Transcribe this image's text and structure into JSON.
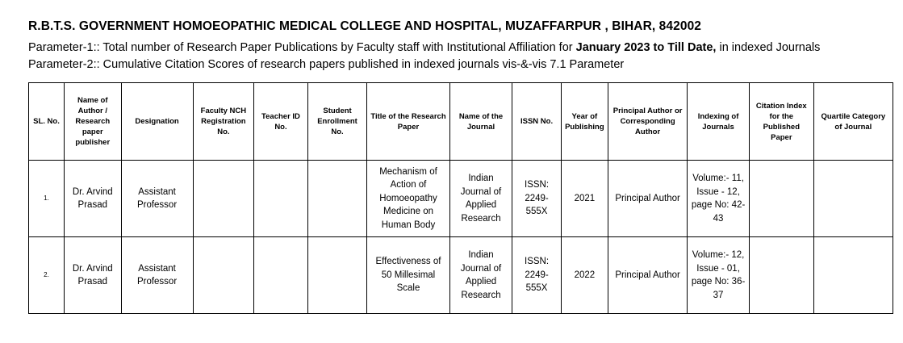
{
  "title": "R.B.T.S. GOVERNMENT HOMOEOPATHIC MEDICAL COLLEGE AND HOSPITAL, MUZAFFARPUR , BIHAR, 842002",
  "parameter1": {
    "prefix": "Parameter-1:: Total number of Research Paper Publications by Faculty staff with Institutional Affiliation for ",
    "bold": "January 2023 to Till Date,",
    "suffix": " in indexed Journals"
  },
  "parameter2": "Parameter-2:: Cumulative Citation Scores of research papers published in indexed journals vis-&-vis 7.1 Parameter",
  "table": {
    "headers": [
      "SL. No.",
      "Name of Author / Research paper publisher",
      "Designation",
      "Faculty NCH Registration No.",
      "Teacher ID No.",
      "Student Enrollment No.",
      "Title of the Research Paper",
      "Name of the Journal",
      "ISSN No.",
      "Year of Publishing",
      "Principal Author or Corresponding Author",
      "Indexing of Journals",
      "Citation Index for the Published Paper",
      "Quartile Category of Journal"
    ],
    "rows": [
      [
        "1.",
        "Dr. Arvind Prasad",
        "Assistant Professor",
        "",
        "",
        "",
        "Mechanism of Action of Homoeopathy Medicine on Human Body",
        "Indian Journal of Applied Research",
        "ISSN: 2249-555X",
        "2021",
        "Principal Author",
        "Volume:- 11, Issue - 12, page No: 42-43",
        "",
        ""
      ],
      [
        "2.",
        "Dr. Arvind Prasad",
        "Assistant Professor",
        "",
        "",
        "",
        "Effectiveness of 50 Millesimal Scale",
        "Indian Journal of Applied Research",
        "ISSN: 2249-555X",
        "2022",
        "Principal Author",
        "Volume:- 12, Issue - 01, page No: 36-37",
        "",
        ""
      ]
    ]
  }
}
